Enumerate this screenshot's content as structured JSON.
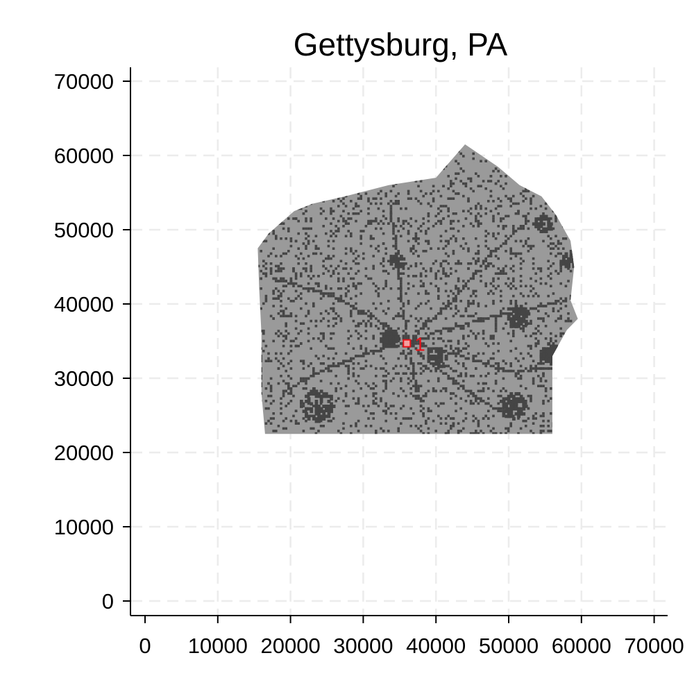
{
  "chart_data": {
    "type": "scatter",
    "title": "Gettysburg, PA",
    "xlabel": "",
    "ylabel": "",
    "xlim": [
      -2000,
      72000
    ],
    "ylim": [
      -2000,
      72000
    ],
    "x_ticks": [
      0,
      10000,
      20000,
      30000,
      40000,
      50000,
      60000,
      70000
    ],
    "y_ticks": [
      0,
      10000,
      20000,
      30000,
      40000,
      50000,
      60000,
      70000
    ],
    "x_tick_labels": [
      "0",
      "10000",
      "20000",
      "30000",
      "40000",
      "50000",
      "60000",
      "70000"
    ],
    "y_tick_labels": [
      "0",
      "10000",
      "20000",
      "30000",
      "40000",
      "50000",
      "60000",
      "70000"
    ],
    "grid": true,
    "legend": "none",
    "region": {
      "name": "county-raster",
      "fill_color": "#9a9a9a",
      "dense_color": "#454545",
      "outline": [
        [
          15500,
          47500
        ],
        [
          17000,
          49500
        ],
        [
          20500,
          52500
        ],
        [
          23000,
          53500
        ],
        [
          27500,
          54500
        ],
        [
          33500,
          56000
        ],
        [
          40000,
          57000
        ],
        [
          44000,
          61500
        ],
        [
          48500,
          58500
        ],
        [
          51500,
          56000
        ],
        [
          54500,
          54500
        ],
        [
          56500,
          52000
        ],
        [
          58500,
          48500
        ],
        [
          59000,
          45000
        ],
        [
          58500,
          40500
        ],
        [
          59500,
          38000
        ],
        [
          58000,
          36500
        ],
        [
          56000,
          33000
        ],
        [
          56000,
          22500
        ],
        [
          16500,
          22500
        ],
        [
          16000,
          28000
        ],
        [
          16000,
          36000
        ],
        [
          15700,
          42000
        ]
      ],
      "dense_clusters": [
        {
          "x": 33500,
          "y": 35500,
          "spread": 1200,
          "count": 90
        },
        {
          "x": 51000,
          "y": 38500,
          "spread": 1500,
          "count": 110
        },
        {
          "x": 55500,
          "y": 33500,
          "spread": 1300,
          "count": 100
        },
        {
          "x": 50500,
          "y": 26500,
          "spread": 1800,
          "count": 110
        },
        {
          "x": 23500,
          "y": 26500,
          "spread": 2200,
          "count": 110
        },
        {
          "x": 34500,
          "y": 46000,
          "spread": 1000,
          "count": 50
        },
        {
          "x": 54500,
          "y": 51000,
          "spread": 1200,
          "count": 50
        },
        {
          "x": 58000,
          "y": 46000,
          "spread": 1000,
          "count": 40
        },
        {
          "x": 40000,
          "y": 33000,
          "spread": 1300,
          "count": 60
        }
      ],
      "roads": [
        [
          [
            36000,
            35000
          ],
          [
            42000,
            37000
          ],
          [
            48000,
            38500
          ],
          [
            53000,
            39500
          ],
          [
            58500,
            41000
          ]
        ],
        [
          [
            36000,
            35000
          ],
          [
            40000,
            31500
          ],
          [
            44000,
            28500
          ],
          [
            49000,
            25500
          ]
        ],
        [
          [
            36000,
            35000
          ],
          [
            30000,
            33500
          ],
          [
            24000,
            31000
          ],
          [
            19000,
            28500
          ]
        ],
        [
          [
            36000,
            35000
          ],
          [
            35000,
            41000
          ],
          [
            34500,
            47000
          ],
          [
            33500,
            53000
          ]
        ],
        [
          [
            36000,
            35000
          ],
          [
            31000,
            38500
          ],
          [
            25000,
            41500
          ],
          [
            18000,
            43500
          ]
        ],
        [
          [
            36000,
            35000
          ],
          [
            44000,
            33000
          ],
          [
            50000,
            31000
          ],
          [
            56000,
            31500
          ]
        ],
        [
          [
            36000,
            35000
          ],
          [
            37000,
            29500
          ],
          [
            38500,
            24000
          ]
        ],
        [
          [
            36000,
            35000
          ],
          [
            42500,
            41000
          ],
          [
            47000,
            46500
          ],
          [
            52000,
            51000
          ]
        ]
      ],
      "scatter_count": 2600
    },
    "points": [
      {
        "x": 36000,
        "y": 34700,
        "label": "1",
        "color": "#e8141b"
      }
    ]
  }
}
